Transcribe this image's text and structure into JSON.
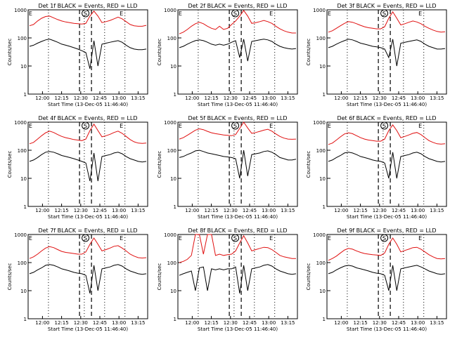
{
  "colors": {
    "events": "#000000",
    "lld": "#e01010",
    "axes": "#000000",
    "background": "#ffffff"
  },
  "chart_data": [
    {
      "type": "line",
      "title": "Det 1f BLACK = Events, RED = LLD",
      "xlabel": "Start Time (13-Dec-05 11:46:40)",
      "ylabel": "Counts/sec",
      "yscale": "log",
      "ylim": [
        1,
        1000
      ],
      "yticks": [
        "1",
        "10",
        "100",
        "1000"
      ],
      "xticks": [
        "12:00",
        "12:15",
        "12:30",
        "12:45",
        "13:00",
        "13:15"
      ],
      "markers": [
        "E",
        "S",
        "E"
      ],
      "series": [
        {
          "name": "Events",
          "values": [
            50,
            55,
            65,
            75,
            85,
            90,
            80,
            70,
            60,
            55,
            50,
            45,
            40,
            35,
            30,
            8,
            80,
            10,
            60,
            65,
            70,
            75,
            80,
            70,
            55,
            45,
            40,
            38,
            38,
            40
          ]
        },
        {
          "name": "LLD",
          "values": [
            270,
            300,
            400,
            500,
            580,
            600,
            520,
            450,
            400,
            370,
            350,
            330,
            320,
            310,
            330,
            600,
            900,
            600,
            350,
            380,
            420,
            480,
            550,
            480,
            380,
            300,
            270,
            260,
            260,
            280
          ]
        }
      ]
    },
    {
      "type": "line",
      "title": "Det 2f BLACK = Events, RED = LLD",
      "xlabel": "Start Time (13-Dec-05 11:46:40)",
      "ylabel": "Counts/sec",
      "yscale": "log",
      "ylim": [
        1,
        1000
      ],
      "yticks": [
        "1",
        "10",
        "100",
        "1000"
      ],
      "xticks": [
        "12:00",
        "12:15",
        "12:30",
        "12:45",
        "13:00",
        "13:15"
      ],
      "markers": [
        "E",
        "S",
        "E"
      ],
      "series": [
        {
          "name": "Events",
          "values": [
            45,
            50,
            60,
            70,
            80,
            85,
            80,
            70,
            60,
            55,
            60,
            55,
            60,
            70,
            80,
            20,
            90,
            15,
            75,
            80,
            85,
            90,
            85,
            75,
            60,
            50,
            45,
            42,
            40,
            42
          ]
        },
        {
          "name": "LLD",
          "values": [
            140,
            160,
            200,
            260,
            320,
            360,
            320,
            260,
            220,
            200,
            260,
            200,
            220,
            300,
            400,
            600,
            950,
            600,
            330,
            350,
            380,
            420,
            380,
            330,
            260,
            210,
            180,
            160,
            150,
            150
          ]
        }
      ]
    },
    {
      "type": "line",
      "title": "Det 3f BLACK = Events, RED = LLD",
      "xlabel": "Start Time (13-Dec-05 11:46:40)",
      "ylabel": "Counts/sec",
      "yscale": "log",
      "ylim": [
        1,
        1000
      ],
      "yticks": [
        "1",
        "10",
        "100",
        "1000"
      ],
      "xticks": [
        "12:00",
        "12:15",
        "12:30",
        "12:45",
        "13:00",
        "13:15"
      ],
      "markers": [
        "E",
        "S",
        "E"
      ],
      "series": [
        {
          "name": "Events",
          "values": [
            45,
            50,
            60,
            70,
            80,
            90,
            85,
            75,
            65,
            60,
            55,
            50,
            48,
            45,
            40,
            20,
            90,
            10,
            65,
            70,
            75,
            80,
            85,
            75,
            60,
            50,
            45,
            40,
            40,
            42
          ]
        },
        {
          "name": "LLD",
          "values": [
            160,
            180,
            220,
            270,
            330,
            380,
            360,
            320,
            280,
            250,
            230,
            220,
            210,
            210,
            250,
            500,
            850,
            500,
            290,
            320,
            360,
            400,
            370,
            320,
            260,
            220,
            190,
            170,
            160,
            165
          ]
        }
      ]
    },
    {
      "type": "line",
      "title": "Det 4f BLACK = Events, RED = LLD",
      "xlabel": "Start Time (13-Dec-05 11:46:40)",
      "ylabel": "Counts/sec",
      "yscale": "log",
      "ylim": [
        1,
        1000
      ],
      "yticks": [
        "1",
        "10",
        "100",
        "1000"
      ],
      "xticks": [
        "12:00",
        "12:15",
        "12:30",
        "12:45",
        "13:00",
        "13:15"
      ],
      "markers": [
        "E",
        "S",
        "E"
      ],
      "series": [
        {
          "name": "Events",
          "values": [
            40,
            45,
            55,
            70,
            85,
            90,
            85,
            75,
            65,
            60,
            55,
            50,
            45,
            40,
            35,
            8,
            80,
            8,
            60,
            65,
            70,
            80,
            85,
            75,
            60,
            50,
            45,
            40,
            38,
            40
          ]
        },
        {
          "name": "LLD",
          "values": [
            170,
            190,
            250,
            330,
            420,
            480,
            430,
            360,
            310,
            280,
            260,
            240,
            230,
            220,
            250,
            500,
            850,
            500,
            300,
            330,
            370,
            430,
            480,
            400,
            310,
            240,
            200,
            180,
            175,
            180
          ]
        }
      ]
    },
    {
      "type": "line",
      "title": "Det 5f BLACK = Events, RED = LLD",
      "xlabel": "Start Time (13-Dec-05 11:46:40)",
      "ylabel": "Counts/sec",
      "yscale": "log",
      "ylim": [
        1,
        1000
      ],
      "yticks": [
        "1",
        "10",
        "100",
        "1000"
      ],
      "xticks": [
        "12:00",
        "12:15",
        "12:30",
        "12:45",
        "13:00",
        "13:15"
      ],
      "markers": [
        "E",
        "S",
        "E"
      ],
      "series": [
        {
          "name": "Events",
          "values": [
            55,
            60,
            70,
            80,
            95,
            100,
            90,
            80,
            75,
            70,
            65,
            60,
            58,
            55,
            50,
            10,
            100,
            12,
            70,
            75,
            80,
            90,
            95,
            85,
            70,
            55,
            50,
            45,
            45,
            48
          ]
        },
        {
          "name": "LLD",
          "values": [
            250,
            280,
            340,
            420,
            520,
            580,
            540,
            470,
            420,
            390,
            370,
            350,
            340,
            330,
            360,
            600,
            1000,
            620,
            400,
            430,
            470,
            520,
            560,
            480,
            380,
            310,
            270,
            250,
            245,
            250
          ]
        }
      ]
    },
    {
      "type": "line",
      "title": "Det 6f BLACK = Events, RED = LLD",
      "xlabel": "Start Time (13-Dec-05 11:46:40)",
      "ylabel": "Counts/sec",
      "yscale": "log",
      "ylim": [
        1,
        1000
      ],
      "yticks": [
        "1",
        "10",
        "100",
        "1000"
      ],
      "xticks": [
        "12:00",
        "12:15",
        "12:30",
        "12:45",
        "13:00",
        "13:15"
      ],
      "markers": [
        "E",
        "S",
        "E"
      ],
      "series": [
        {
          "name": "Events",
          "values": [
            40,
            45,
            55,
            65,
            80,
            85,
            80,
            70,
            60,
            55,
            50,
            45,
            42,
            40,
            35,
            10,
            85,
            10,
            60,
            65,
            70,
            80,
            85,
            75,
            60,
            50,
            45,
            40,
            38,
            40
          ]
        },
        {
          "name": "LLD",
          "values": [
            160,
            180,
            230,
            300,
            380,
            420,
            390,
            330,
            280,
            250,
            230,
            220,
            210,
            210,
            250,
            500,
            800,
            500,
            280,
            310,
            350,
            400,
            430,
            360,
            280,
            220,
            190,
            170,
            165,
            170
          ]
        }
      ]
    },
    {
      "type": "line",
      "title": "Det 7f BLACK = Events, RED = LLD",
      "xlabel": "Start Time (13-Dec-05 11:46:40)",
      "ylabel": "Counts/sec",
      "yscale": "log",
      "ylim": [
        1,
        1000
      ],
      "yticks": [
        "1",
        "10",
        "100",
        "1000"
      ],
      "xticks": [
        "12:00",
        "12:15",
        "12:30",
        "12:45",
        "13:00",
        "13:15"
      ],
      "markers": [
        "E",
        "S",
        "E"
      ],
      "series": [
        {
          "name": "Events",
          "values": [
            40,
            45,
            55,
            65,
            80,
            85,
            80,
            70,
            60,
            55,
            50,
            45,
            42,
            40,
            35,
            8,
            80,
            10,
            60,
            65,
            70,
            80,
            85,
            75,
            60,
            50,
            45,
            40,
            38,
            40
          ]
        },
        {
          "name": "LLD",
          "values": [
            140,
            160,
            200,
            260,
            330,
            370,
            340,
            290,
            250,
            230,
            220,
            210,
            200,
            200,
            240,
            450,
            750,
            450,
            260,
            290,
            330,
            380,
            400,
            330,
            260,
            200,
            170,
            150,
            145,
            150
          ]
        }
      ]
    },
    {
      "type": "line",
      "title": "Det 8f BLACK = Events, RED = LLD",
      "xlabel": "Start Time (13-Dec-05 11:46:40)",
      "ylabel": "Counts/sec",
      "yscale": "log",
      "ylim": [
        1,
        1000
      ],
      "yticks": [
        "1",
        "10",
        "100",
        "1000"
      ],
      "xticks": [
        "12:00",
        "12:15",
        "12:30",
        "12:45",
        "13:00",
        "13:15"
      ],
      "markers": [
        "E",
        "S",
        "E"
      ],
      "series": [
        {
          "name": "Events",
          "values": [
            35,
            40,
            45,
            50,
            10,
            65,
            70,
            10,
            60,
            55,
            60,
            55,
            60,
            60,
            70,
            8,
            80,
            10,
            60,
            65,
            70,
            80,
            85,
            75,
            60,
            50,
            45,
            40,
            38,
            40
          ]
        },
        {
          "name": "LLD",
          "values": [
            100,
            110,
            130,
            180,
            1000,
            1000,
            200,
            1000,
            1000,
            180,
            200,
            180,
            190,
            200,
            260,
            500,
            900,
            500,
            260,
            290,
            320,
            350,
            340,
            290,
            230,
            180,
            160,
            150,
            140,
            140
          ]
        }
      ]
    },
    {
      "type": "line",
      "title": "Det 9f BLACK = Events, RED = LLD",
      "xlabel": "Start Time (13-Dec-05 11:46:40)",
      "ylabel": "Counts/sec",
      "yscale": "log",
      "ylim": [
        1,
        1000
      ],
      "yticks": [
        "1",
        "10",
        "100",
        "1000"
      ],
      "xticks": [
        "12:00",
        "12:15",
        "12:30",
        "12:45",
        "13:00",
        "13:15"
      ],
      "markers": [
        "E",
        "S",
        "E"
      ],
      "series": [
        {
          "name": "Events",
          "values": [
            40,
            45,
            55,
            65,
            75,
            80,
            75,
            65,
            60,
            55,
            50,
            45,
            42,
            40,
            35,
            10,
            80,
            10,
            60,
            65,
            70,
            75,
            80,
            70,
            60,
            50,
            45,
            40,
            38,
            40
          ]
        },
        {
          "name": "LLD",
          "values": [
            120,
            140,
            170,
            220,
            280,
            320,
            300,
            260,
            230,
            210,
            200,
            190,
            185,
            180,
            220,
            450,
            750,
            450,
            240,
            270,
            300,
            340,
            350,
            300,
            240,
            190,
            160,
            140,
            135,
            140
          ]
        }
      ]
    }
  ]
}
